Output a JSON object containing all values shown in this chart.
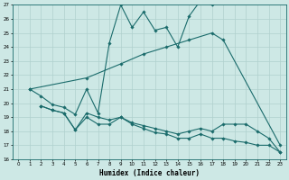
{
  "xlabel": "Humidex (Indice chaleur)",
  "background_color": "#cde8e5",
  "line_color": "#1a6b6b",
  "grid_color": "#b0d0ce",
  "xlim": [
    -0.5,
    23.5
  ],
  "ylim": [
    16,
    27
  ],
  "yticks": [
    16,
    17,
    18,
    19,
    20,
    21,
    22,
    23,
    24,
    25,
    26,
    27
  ],
  "xticks": [
    0,
    1,
    2,
    3,
    4,
    5,
    6,
    7,
    8,
    9,
    10,
    11,
    12,
    13,
    14,
    15,
    16,
    17,
    18,
    19,
    20,
    21,
    22,
    23
  ],
  "series": [
    {
      "x": [
        1,
        2,
        3,
        4,
        5,
        6,
        7,
        8,
        9,
        10,
        11,
        12,
        13,
        14,
        15,
        16,
        17
      ],
      "y": [
        21.0,
        20.5,
        19.9,
        19.7,
        19.2,
        21.0,
        19.3,
        24.3,
        27.0,
        25.4,
        26.5,
        25.2,
        25.4,
        24.0,
        26.2,
        27.3,
        27.0
      ]
    },
    {
      "x": [
        1,
        6,
        9,
        11,
        13,
        15,
        17,
        18,
        23
      ],
      "y": [
        21.0,
        21.8,
        22.8,
        23.5,
        24.0,
        24.5,
        25.0,
        24.5,
        17.0
      ]
    },
    {
      "x": [
        2,
        3,
        4,
        5,
        6,
        7,
        8,
        9,
        10,
        11,
        12,
        13,
        14,
        15,
        16,
        17,
        18,
        19,
        20,
        21,
        22,
        23
      ],
      "y": [
        19.8,
        19.5,
        19.3,
        18.1,
        19.3,
        19.0,
        18.8,
        19.0,
        18.6,
        18.4,
        18.2,
        18.0,
        17.8,
        18.0,
        18.2,
        18.0,
        18.5,
        18.5,
        18.5,
        18.0,
        17.5,
        16.5
      ]
    },
    {
      "x": [
        2,
        3,
        4,
        5,
        6,
        7,
        8,
        9,
        10,
        11,
        12,
        13,
        14,
        15,
        16,
        17,
        18,
        19,
        20,
        21,
        22,
        23
      ],
      "y": [
        19.8,
        19.5,
        19.3,
        18.1,
        19.0,
        18.5,
        18.5,
        19.0,
        18.5,
        18.2,
        17.9,
        17.8,
        17.5,
        17.5,
        17.8,
        17.5,
        17.5,
        17.3,
        17.2,
        17.0,
        17.0,
        16.5
      ]
    }
  ]
}
